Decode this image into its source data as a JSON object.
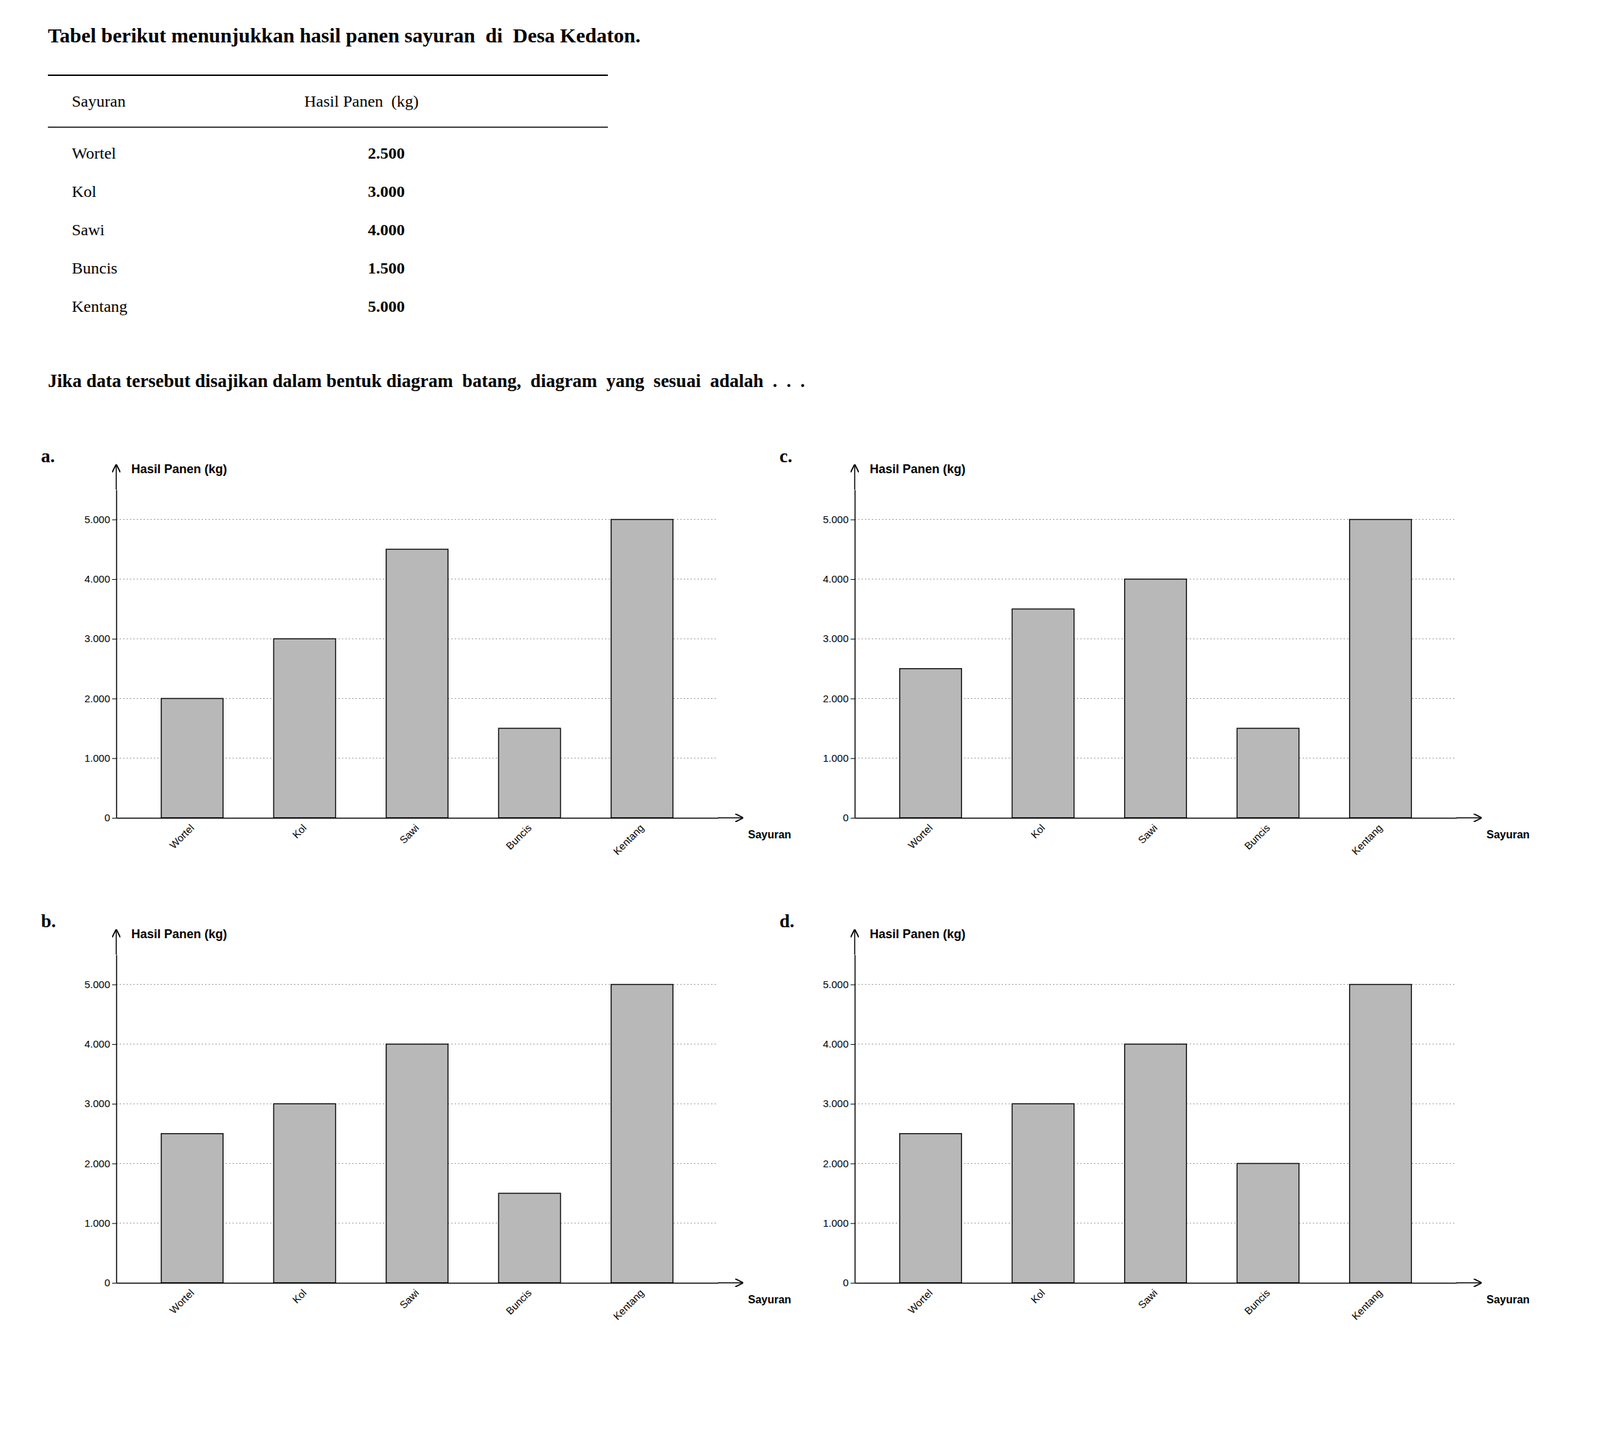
{
  "title": "Tabel berikut menunjukkan hasil panen sayuran  di  Desa Kedaton.",
  "table": {
    "headers": [
      "Sayuran",
      "Hasil Panen  (kg)"
    ],
    "rows": [
      [
        "Wortel",
        "2.500"
      ],
      [
        "Kol",
        "3.000"
      ],
      [
        "Sawi",
        "4.000"
      ],
      [
        "Buncis",
        "1.500"
      ],
      [
        "Kentang",
        "5.000"
      ]
    ]
  },
  "question": "Jika data tersebut disajikan dalam bentuk diagram  batang,  diagram  yang  sesuai  adalah  .  .  .",
  "chart_data": [
    {
      "type": "bar",
      "title": "a.",
      "xlabel": "Sayuran",
      "ylabel": "Hasil Panen (kg)",
      "categories": [
        "Wortel",
        "Kol",
        "Sawi",
        "Buncis",
        "Kentang"
      ],
      "values": [
        2000,
        3000,
        4500,
        1500,
        5000
      ],
      "color": "#b8b8b8",
      "ylim": [
        0,
        5500
      ],
      "yticks": [
        0,
        {
          "value": 1000,
          "label": "1.000"
        },
        {
          "value": 2000,
          "label": "2.000"
        },
        {
          "value": 3000,
          "label": "3.000"
        },
        {
          "value": 4000,
          "label": "4.000"
        },
        {
          "value": 5000,
          "label": "5.000"
        }
      ],
      "grid": true
    },
    {
      "type": "bar",
      "title": "b.",
      "xlabel": "Sayuran",
      "ylabel": "Hasil Panen (kg)",
      "categories": [
        "Wortel",
        "Kol",
        "Sawi",
        "Buncis",
        "Kentang"
      ],
      "values": [
        2500,
        3000,
        4000,
        1500,
        5000
      ],
      "color": "#b8b8b8",
      "ylim": [
        0,
        5500
      ],
      "yticks": [
        0,
        {
          "value": 1000,
          "label": "1.000"
        },
        {
          "value": 2000,
          "label": "2.000"
        },
        {
          "value": 3000,
          "label": "3.000"
        },
        {
          "value": 4000,
          "label": "4.000"
        },
        {
          "value": 5000,
          "label": "5.000"
        }
      ],
      "grid": true
    },
    {
      "type": "bar",
      "title": "c.",
      "xlabel": "Sayuran",
      "ylabel": "Hasil Panen (kg)",
      "categories": [
        "Wortel",
        "Kol",
        "Sawi",
        "Buncis",
        "Kentang"
      ],
      "values": [
        2500,
        3500,
        4000,
        1500,
        5000
      ],
      "color": "#b8b8b8",
      "ylim": [
        0,
        5500
      ],
      "yticks": [
        0,
        {
          "value": 1000,
          "label": "1.000"
        },
        {
          "value": 2000,
          "label": "2.000"
        },
        {
          "value": 3000,
          "label": "3.000"
        },
        {
          "value": 4000,
          "label": "4.000"
        },
        {
          "value": 5000,
          "label": "5.000"
        }
      ],
      "grid": true
    },
    {
      "type": "bar",
      "title": "d.",
      "xlabel": "Sayuran",
      "ylabel": "Hasil Panen (kg)",
      "categories": [
        "Wortel",
        "Kol",
        "Sawi",
        "Buncis",
        "Kentang"
      ],
      "values": [
        2500,
        3000,
        4000,
        2000,
        5000
      ],
      "color": "#b8b8b8",
      "ylim": [
        0,
        5500
      ],
      "yticks": [
        0,
        {
          "value": 1000,
          "label": "1.000"
        },
        {
          "value": 2000,
          "label": "2.000"
        },
        {
          "value": 3000,
          "label": "3.000"
        },
        {
          "value": 4000,
          "label": "4.000"
        },
        {
          "value": 5000,
          "label": "5.000"
        }
      ],
      "grid": true
    }
  ]
}
